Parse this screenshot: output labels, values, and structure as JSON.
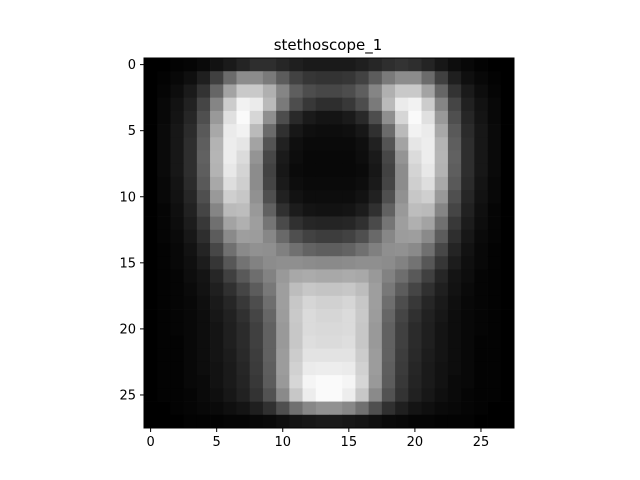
{
  "chart_data": {
    "type": "heatmap",
    "title": "stethoscope_1",
    "colormap": "gray",
    "xlabel": "",
    "ylabel": "",
    "xlim": [
      -0.5,
      27.5
    ],
    "ylim": [
      27.5,
      -0.5
    ],
    "xticks": [
      0,
      5,
      10,
      15,
      20,
      25
    ],
    "yticks": [
      0,
      5,
      10,
      15,
      20,
      25
    ],
    "grid": false,
    "value_range": [
      0,
      1
    ],
    "rows": 28,
    "cols": 28,
    "values": [
      [
        0.0,
        0.0,
        0.01,
        0.02,
        0.04,
        0.07,
        0.1,
        0.14,
        0.18,
        0.18,
        0.15,
        0.12,
        0.1,
        0.1,
        0.1,
        0.1,
        0.12,
        0.15,
        0.18,
        0.2,
        0.18,
        0.14,
        0.09,
        0.05,
        0.03,
        0.01,
        0.0,
        0.0
      ],
      [
        0.0,
        0.01,
        0.03,
        0.06,
        0.12,
        0.25,
        0.42,
        0.55,
        0.55,
        0.48,
        0.36,
        0.26,
        0.21,
        0.2,
        0.2,
        0.21,
        0.26,
        0.36,
        0.48,
        0.55,
        0.55,
        0.42,
        0.25,
        0.12,
        0.06,
        0.03,
        0.01,
        0.0
      ],
      [
        0.0,
        0.02,
        0.05,
        0.1,
        0.2,
        0.4,
        0.64,
        0.79,
        0.79,
        0.69,
        0.52,
        0.37,
        0.3,
        0.28,
        0.28,
        0.3,
        0.37,
        0.52,
        0.69,
        0.79,
        0.79,
        0.64,
        0.4,
        0.2,
        0.1,
        0.05,
        0.02,
        0.0
      ],
      [
        0.0,
        0.03,
        0.07,
        0.13,
        0.27,
        0.52,
        0.8,
        0.95,
        0.92,
        0.73,
        0.48,
        0.3,
        0.22,
        0.18,
        0.18,
        0.22,
        0.3,
        0.48,
        0.73,
        0.92,
        0.95,
        0.8,
        0.52,
        0.27,
        0.13,
        0.07,
        0.03,
        0.0
      ],
      [
        0.0,
        0.03,
        0.08,
        0.15,
        0.31,
        0.6,
        0.88,
        0.98,
        0.84,
        0.56,
        0.3,
        0.16,
        0.1,
        0.08,
        0.08,
        0.1,
        0.16,
        0.3,
        0.56,
        0.84,
        0.98,
        0.88,
        0.6,
        0.31,
        0.15,
        0.08,
        0.03,
        0.0
      ],
      [
        0.0,
        0.04,
        0.09,
        0.17,
        0.35,
        0.66,
        0.92,
        0.95,
        0.73,
        0.42,
        0.19,
        0.09,
        0.06,
        0.05,
        0.05,
        0.06,
        0.09,
        0.19,
        0.42,
        0.73,
        0.95,
        0.92,
        0.66,
        0.35,
        0.17,
        0.09,
        0.04,
        0.0
      ],
      [
        0.0,
        0.04,
        0.09,
        0.18,
        0.37,
        0.7,
        0.93,
        0.9,
        0.64,
        0.33,
        0.13,
        0.06,
        0.04,
        0.04,
        0.04,
        0.04,
        0.06,
        0.13,
        0.33,
        0.64,
        0.9,
        0.93,
        0.7,
        0.37,
        0.18,
        0.09,
        0.04,
        0.0
      ],
      [
        0.0,
        0.04,
        0.09,
        0.18,
        0.38,
        0.71,
        0.93,
        0.86,
        0.58,
        0.28,
        0.1,
        0.05,
        0.03,
        0.03,
        0.03,
        0.03,
        0.05,
        0.1,
        0.28,
        0.58,
        0.86,
        0.93,
        0.71,
        0.38,
        0.18,
        0.09,
        0.04,
        0.0
      ],
      [
        0.0,
        0.04,
        0.09,
        0.18,
        0.37,
        0.7,
        0.91,
        0.83,
        0.55,
        0.26,
        0.09,
        0.04,
        0.03,
        0.03,
        0.03,
        0.03,
        0.04,
        0.09,
        0.26,
        0.55,
        0.83,
        0.91,
        0.7,
        0.37,
        0.18,
        0.09,
        0.04,
        0.0
      ],
      [
        0.0,
        0.03,
        0.08,
        0.17,
        0.35,
        0.66,
        0.87,
        0.81,
        0.55,
        0.27,
        0.1,
        0.05,
        0.04,
        0.04,
        0.04,
        0.04,
        0.05,
        0.1,
        0.27,
        0.55,
        0.81,
        0.87,
        0.66,
        0.35,
        0.17,
        0.08,
        0.03,
        0.0
      ],
      [
        0.0,
        0.03,
        0.07,
        0.15,
        0.31,
        0.6,
        0.81,
        0.78,
        0.57,
        0.31,
        0.13,
        0.07,
        0.05,
        0.05,
        0.05,
        0.05,
        0.07,
        0.13,
        0.31,
        0.57,
        0.78,
        0.81,
        0.6,
        0.31,
        0.15,
        0.07,
        0.03,
        0.0
      ],
      [
        0.0,
        0.02,
        0.06,
        0.13,
        0.27,
        0.52,
        0.73,
        0.74,
        0.6,
        0.38,
        0.19,
        0.11,
        0.08,
        0.07,
        0.07,
        0.08,
        0.11,
        0.19,
        0.38,
        0.6,
        0.74,
        0.73,
        0.52,
        0.27,
        0.13,
        0.06,
        0.02,
        0.0
      ],
      [
        0.0,
        0.02,
        0.05,
        0.11,
        0.22,
        0.44,
        0.64,
        0.69,
        0.62,
        0.46,
        0.29,
        0.19,
        0.15,
        0.14,
        0.14,
        0.15,
        0.19,
        0.29,
        0.46,
        0.62,
        0.69,
        0.64,
        0.44,
        0.22,
        0.11,
        0.05,
        0.02,
        0.0
      ],
      [
        0.0,
        0.02,
        0.04,
        0.09,
        0.18,
        0.36,
        0.54,
        0.62,
        0.61,
        0.53,
        0.41,
        0.31,
        0.26,
        0.24,
        0.24,
        0.26,
        0.31,
        0.41,
        0.53,
        0.61,
        0.62,
        0.54,
        0.36,
        0.18,
        0.09,
        0.04,
        0.02,
        0.0
      ],
      [
        0.0,
        0.01,
        0.03,
        0.07,
        0.14,
        0.28,
        0.44,
        0.54,
        0.57,
        0.56,
        0.5,
        0.44,
        0.39,
        0.37,
        0.37,
        0.39,
        0.44,
        0.5,
        0.56,
        0.57,
        0.54,
        0.44,
        0.28,
        0.14,
        0.07,
        0.03,
        0.01,
        0.0
      ],
      [
        0.0,
        0.01,
        0.03,
        0.06,
        0.11,
        0.21,
        0.34,
        0.45,
        0.51,
        0.55,
        0.56,
        0.56,
        0.55,
        0.54,
        0.54,
        0.55,
        0.56,
        0.56,
        0.55,
        0.51,
        0.45,
        0.34,
        0.21,
        0.11,
        0.06,
        0.03,
        0.01,
        0.0
      ],
      [
        0.0,
        0.01,
        0.02,
        0.05,
        0.08,
        0.15,
        0.25,
        0.35,
        0.43,
        0.51,
        0.6,
        0.66,
        0.67,
        0.66,
        0.66,
        0.67,
        0.66,
        0.6,
        0.51,
        0.43,
        0.35,
        0.25,
        0.15,
        0.08,
        0.05,
        0.02,
        0.01,
        0.0
      ],
      [
        0.0,
        0.01,
        0.02,
        0.04,
        0.07,
        0.12,
        0.19,
        0.27,
        0.36,
        0.47,
        0.62,
        0.74,
        0.78,
        0.77,
        0.77,
        0.78,
        0.74,
        0.62,
        0.47,
        0.36,
        0.27,
        0.19,
        0.12,
        0.07,
        0.04,
        0.02,
        0.01,
        0.0
      ],
      [
        0.0,
        0.01,
        0.02,
        0.03,
        0.06,
        0.1,
        0.15,
        0.22,
        0.3,
        0.43,
        0.62,
        0.78,
        0.84,
        0.82,
        0.82,
        0.84,
        0.78,
        0.62,
        0.43,
        0.3,
        0.22,
        0.15,
        0.1,
        0.06,
        0.03,
        0.02,
        0.01,
        0.0
      ],
      [
        0.0,
        0.01,
        0.02,
        0.03,
        0.05,
        0.09,
        0.13,
        0.19,
        0.27,
        0.4,
        0.61,
        0.79,
        0.86,
        0.84,
        0.84,
        0.86,
        0.79,
        0.61,
        0.4,
        0.27,
        0.19,
        0.13,
        0.09,
        0.05,
        0.03,
        0.02,
        0.01,
        0.0
      ],
      [
        0.0,
        0.01,
        0.02,
        0.03,
        0.05,
        0.08,
        0.12,
        0.17,
        0.25,
        0.38,
        0.6,
        0.78,
        0.86,
        0.85,
        0.85,
        0.86,
        0.78,
        0.6,
        0.38,
        0.25,
        0.17,
        0.12,
        0.08,
        0.05,
        0.03,
        0.02,
        0.01,
        0.0
      ],
      [
        0.0,
        0.01,
        0.01,
        0.03,
        0.05,
        0.08,
        0.12,
        0.17,
        0.25,
        0.38,
        0.6,
        0.78,
        0.87,
        0.86,
        0.86,
        0.87,
        0.78,
        0.6,
        0.38,
        0.25,
        0.17,
        0.12,
        0.08,
        0.05,
        0.03,
        0.01,
        0.01,
        0.0
      ],
      [
        0.0,
        0.01,
        0.01,
        0.03,
        0.05,
        0.08,
        0.11,
        0.16,
        0.24,
        0.38,
        0.61,
        0.8,
        0.89,
        0.89,
        0.89,
        0.89,
        0.8,
        0.61,
        0.38,
        0.24,
        0.16,
        0.11,
        0.08,
        0.05,
        0.03,
        0.01,
        0.01,
        0.0
      ],
      [
        0.0,
        0.01,
        0.01,
        0.03,
        0.05,
        0.07,
        0.1,
        0.15,
        0.23,
        0.37,
        0.61,
        0.82,
        0.92,
        0.93,
        0.93,
        0.92,
        0.82,
        0.61,
        0.37,
        0.23,
        0.15,
        0.1,
        0.07,
        0.05,
        0.03,
        0.01,
        0.01,
        0.0
      ],
      [
        0.0,
        0.01,
        0.01,
        0.03,
        0.04,
        0.07,
        0.1,
        0.14,
        0.22,
        0.36,
        0.6,
        0.84,
        0.96,
        0.98,
        0.98,
        0.96,
        0.84,
        0.6,
        0.36,
        0.22,
        0.14,
        0.1,
        0.07,
        0.04,
        0.03,
        0.01,
        0.01,
        0.0
      ],
      [
        0.0,
        0.01,
        0.01,
        0.02,
        0.04,
        0.06,
        0.09,
        0.13,
        0.2,
        0.32,
        0.54,
        0.78,
        0.93,
        0.98,
        0.98,
        0.93,
        0.78,
        0.54,
        0.32,
        0.2,
        0.13,
        0.09,
        0.06,
        0.04,
        0.02,
        0.01,
        0.01,
        0.0
      ],
      [
        0.0,
        0.0,
        0.01,
        0.02,
        0.03,
        0.04,
        0.06,
        0.08,
        0.12,
        0.19,
        0.31,
        0.44,
        0.53,
        0.57,
        0.57,
        0.53,
        0.44,
        0.31,
        0.19,
        0.12,
        0.08,
        0.06,
        0.04,
        0.03,
        0.02,
        0.01,
        0.0,
        0.0
      ],
      [
        0.0,
        0.0,
        0.0,
        0.01,
        0.01,
        0.01,
        0.02,
        0.02,
        0.03,
        0.04,
        0.06,
        0.08,
        0.09,
        0.1,
        0.1,
        0.09,
        0.08,
        0.06,
        0.04,
        0.03,
        0.02,
        0.02,
        0.01,
        0.01,
        0.01,
        0.0,
        0.0,
        0.0
      ]
    ]
  }
}
